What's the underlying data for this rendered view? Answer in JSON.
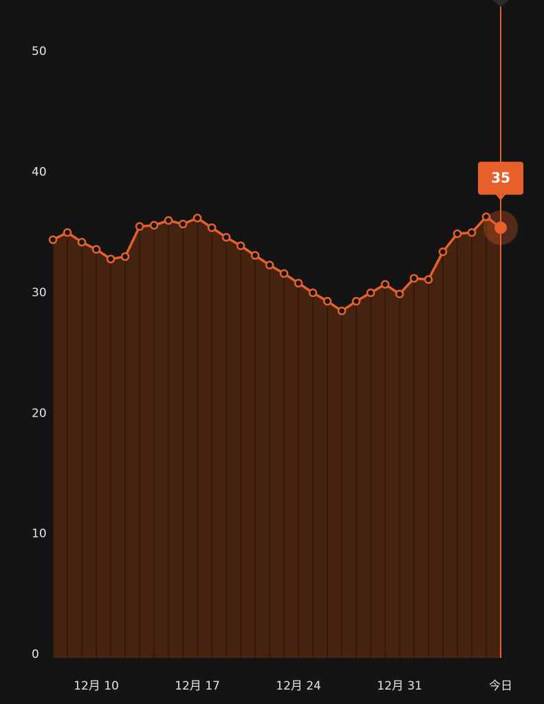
{
  "chart_data": {
    "type": "area",
    "categories": [
      null,
      null,
      null,
      "12月 10",
      null,
      null,
      null,
      null,
      null,
      null,
      "12月 17",
      null,
      null,
      null,
      null,
      null,
      null,
      "12月 24",
      null,
      null,
      null,
      null,
      null,
      null,
      "12月 31",
      null,
      null,
      null,
      null,
      null,
      null,
      "今日"
    ],
    "values": [
      34.4,
      35.0,
      34.2,
      33.6,
      32.8,
      33.0,
      35.5,
      35.6,
      36.0,
      35.7,
      36.2,
      35.4,
      34.6,
      33.9,
      33.1,
      32.3,
      31.6,
      30.8,
      30.0,
      29.3,
      28.5,
      29.3,
      30.0,
      30.7,
      29.9,
      31.2,
      31.1,
      33.4,
      34.9,
      35.0,
      36.3,
      35.4
    ],
    "value_labels": [
      null,
      null,
      null,
      null,
      null,
      null,
      null,
      null,
      null,
      null,
      null,
      null,
      null,
      null,
      null,
      null,
      null,
      null,
      null,
      null,
      null,
      null,
      null,
      null,
      null,
      null,
      null,
      null,
      null,
      null,
      null,
      "35"
    ],
    "color": "#e8612c",
    "fill": "#45230f",
    "ylim": [
      0,
      54
    ],
    "yticks": [
      0,
      10,
      20,
      30,
      40,
      50
    ]
  }
}
